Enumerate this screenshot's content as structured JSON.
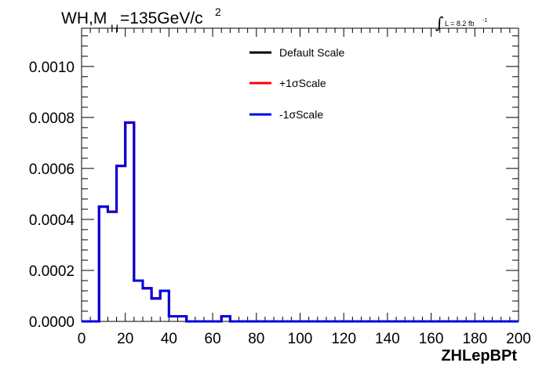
{
  "chart_data": {
    "type": "line",
    "drawstyle": "steps",
    "title_parts": {
      "main": "WH,M",
      "subscript": "H",
      "rest": "=135GeV/c",
      "superscript": "2"
    },
    "luminosity_label": {
      "integral": "∫",
      "text": "L = 8.2 fb",
      "superscript": "-1"
    },
    "xlabel": "ZHLepBPt",
    "ylabel": "",
    "xlim": [
      0,
      200
    ],
    "ylim": [
      0,
      0.00115
    ],
    "x_ticks": [
      0,
      20,
      40,
      60,
      80,
      100,
      120,
      140,
      160,
      180,
      200
    ],
    "x_tick_labels": [
      "0",
      "20",
      "40",
      "60",
      "80",
      "100",
      "120",
      "140",
      "160",
      "180",
      "200"
    ],
    "y_ticks": [
      0,
      0.0002,
      0.0004,
      0.0006,
      0.0008,
      0.001
    ],
    "y_tick_labels": [
      "0.0000",
      "0.0002",
      "0.0004",
      "0.0006",
      "0.0008",
      "0.0010"
    ],
    "grid": false,
    "legend_position": "top-center",
    "bin_edges": [
      0,
      4,
      8,
      12,
      16,
      20,
      24,
      28,
      32,
      36,
      40,
      44,
      48,
      52,
      56,
      60,
      64,
      68,
      72,
      76,
      80,
      84,
      88,
      92,
      96,
      100,
      104,
      108,
      112,
      116,
      120,
      124,
      128,
      132,
      136,
      140,
      144,
      148,
      152,
      156,
      160,
      164,
      168,
      172,
      176,
      180,
      184,
      188,
      192,
      196,
      200
    ],
    "series": [
      {
        "name": "Default Scale",
        "color": "#000000",
        "values": [
          0,
          0,
          0.00045,
          0.00043,
          0.00061,
          0.00078,
          0.00016,
          0.00013,
          9e-05,
          0.00012,
          2e-05,
          2e-05,
          0,
          0,
          0,
          0,
          2e-05,
          0,
          0,
          0,
          0,
          0,
          0,
          0,
          0,
          0,
          0,
          0,
          0,
          0,
          0,
          0,
          0,
          0,
          0,
          0,
          0,
          0,
          0,
          0,
          0,
          0,
          0,
          0,
          0,
          0,
          0,
          0,
          0,
          0
        ]
      },
      {
        "name": "+1σScale",
        "color": "#ff0000",
        "values": [
          0,
          0,
          0.00045,
          0.00043,
          0.00061,
          0.00078,
          0.00016,
          0.00013,
          9e-05,
          0.00012,
          2e-05,
          2e-05,
          0,
          0,
          0,
          0,
          2e-05,
          0,
          0,
          0,
          0,
          0,
          0,
          0,
          0,
          0,
          0,
          0,
          0,
          0,
          0,
          0,
          0,
          0,
          0,
          0,
          0,
          0,
          0,
          0,
          0,
          0,
          0,
          0,
          0,
          0,
          0,
          0,
          0,
          0
        ]
      },
      {
        "name": "-1σScale",
        "color": "#0000e0",
        "values": [
          0,
          0,
          0.00045,
          0.00043,
          0.00061,
          0.00078,
          0.00016,
          0.00013,
          9e-05,
          0.00012,
          2e-05,
          2e-05,
          0,
          0,
          0,
          0,
          2e-05,
          0,
          0,
          0,
          0,
          0,
          0,
          0,
          0,
          0,
          0,
          0,
          0,
          0,
          0,
          0,
          0,
          0,
          0,
          0,
          0,
          0,
          0,
          0,
          0,
          0,
          0,
          0,
          0,
          0,
          0,
          0,
          0,
          0
        ]
      }
    ]
  }
}
